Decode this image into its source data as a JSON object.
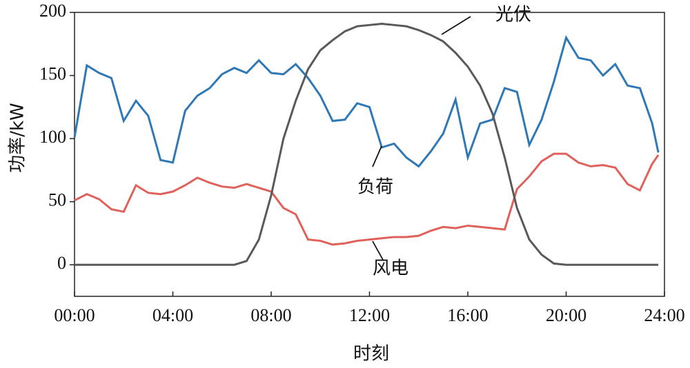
{
  "chart_data": {
    "type": "line",
    "x_label": "时刻",
    "y_label": "功率/kW",
    "x": [
      0,
      0.5,
      1,
      1.5,
      2,
      2.5,
      3,
      3.5,
      4,
      4.5,
      5,
      5.5,
      6,
      6.5,
      7,
      7.5,
      8,
      8.5,
      9,
      9.5,
      10,
      10.5,
      11,
      11.5,
      12,
      12.5,
      13,
      13.5,
      14,
      14.5,
      15,
      15.5,
      16,
      16.5,
      17,
      17.5,
      18,
      18.5,
      19,
      19.5,
      20,
      20.5,
      21,
      21.5,
      22,
      22.5,
      23,
      23.5,
      23.75
    ],
    "series": [
      {
        "name": "负荷",
        "color": "#2e78b6",
        "values": [
          101,
          158,
          152,
          148,
          114,
          130,
          118,
          83,
          81,
          122,
          134,
          140,
          151,
          156,
          152,
          162,
          152,
          151,
          159,
          148,
          134,
          114,
          115,
          128,
          125,
          93,
          96,
          85,
          78,
          90,
          104,
          131,
          85,
          112,
          115,
          140,
          137,
          95,
          115,
          145,
          180,
          164,
          162,
          150,
          159,
          142,
          140,
          112,
          89
        ]
      },
      {
        "name": "风电",
        "color": "#e0605a",
        "values": [
          51,
          56,
          52,
          44,
          42,
          63,
          57,
          56,
          58,
          63,
          69,
          65,
          62,
          61,
          64,
          61,
          58,
          45,
          40,
          20,
          19,
          16,
          17,
          19,
          20,
          21,
          22,
          22,
          23,
          27,
          30,
          29,
          31,
          30,
          29,
          28,
          60,
          70,
          82,
          88,
          88,
          81,
          78,
          79,
          77,
          64,
          59,
          80,
          87
        ]
      },
      {
        "name": "光伏",
        "color": "#595959",
        "values": [
          0,
          0,
          0,
          0,
          0,
          0,
          0,
          0,
          0,
          0,
          0,
          0,
          0,
          0,
          3,
          20,
          55,
          100,
          130,
          155,
          170,
          178,
          185,
          189,
          190,
          191,
          190,
          189,
          186,
          182,
          177,
          168,
          157,
          142,
          120,
          85,
          45,
          20,
          8,
          1,
          0,
          0,
          0,
          0,
          0,
          0,
          0,
          0,
          0
        ]
      }
    ],
    "xlim": [
      0,
      24
    ],
    "xticks": [
      {
        "value": 0,
        "label": "00:00"
      },
      {
        "value": 4,
        "label": "04:00"
      },
      {
        "value": 8,
        "label": "08:00"
      },
      {
        "value": 12,
        "label": "12:00"
      },
      {
        "value": 16,
        "label": "16:00"
      },
      {
        "value": 20,
        "label": "20:00"
      },
      {
        "value": 24,
        "label": "24:00"
      }
    ],
    "ylim": [
      -25,
      200
    ],
    "yticks": [
      0,
      50,
      100,
      150,
      200
    ]
  }
}
